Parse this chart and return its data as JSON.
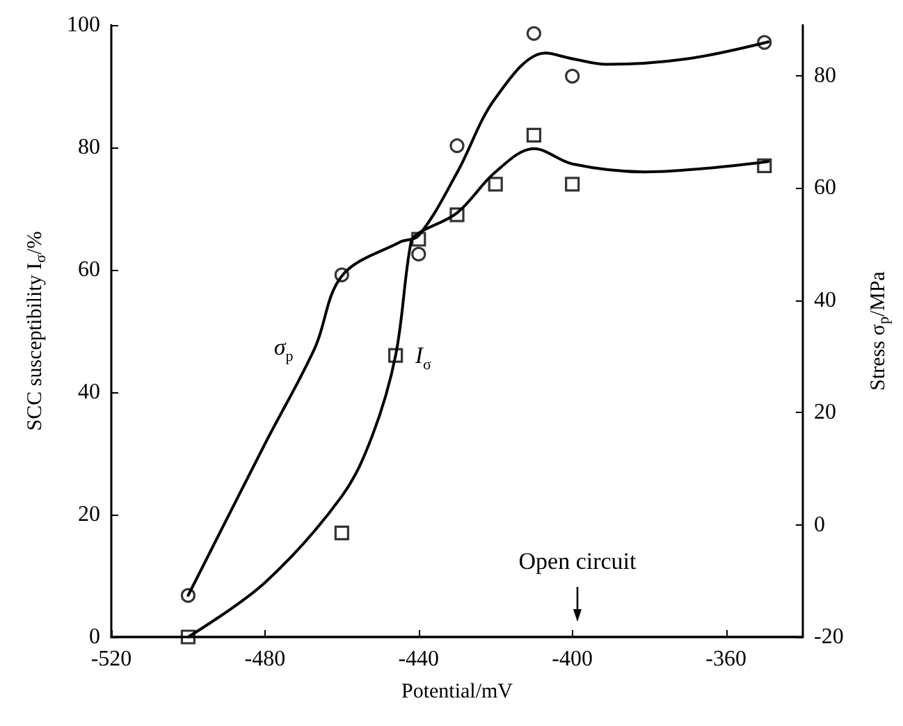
{
  "chart_data": {
    "type": "scatter",
    "xlabel": "Potential/mV",
    "ylabel": "SCC susceptibility I$_{σ}$/%",
    "y2label": "Stress σ$_{p}$/MPa",
    "xlim": [
      -520,
      -340
    ],
    "xticks": [
      -520,
      -480,
      -440,
      -400,
      -360
    ],
    "ylim": [
      0,
      100
    ],
    "yticks": [
      0,
      20,
      40,
      60,
      80,
      100
    ],
    "y2lim": [
      -20,
      89
    ],
    "y2ticks": [
      -20,
      0,
      20,
      40,
      60,
      80
    ],
    "grid": false,
    "series": [
      {
        "axis": "y2",
        "marker": "circle",
        "color": "#000000",
        "x": [
          -500,
          -460,
          -440,
          -430,
          -410,
          -400,
          -350
        ],
        "values": [
          -12.6,
          44.5,
          48.2,
          67.5,
          87.5,
          79.9,
          85.9
        ]
      },
      {
        "axis": "y",
        "marker": "square",
        "color": "#000000",
        "x": [
          -500,
          -460,
          -446,
          -440,
          -430,
          -420,
          -410,
          -400,
          -350
        ],
        "values": [
          0,
          17,
          46,
          65,
          69,
          74,
          82,
          74,
          77
        ]
      },
      {
        "type": "line",
        "name": "σ$_{p}$",
        "axis": "y2",
        "marker": "none",
        "line_style": "solid",
        "color": "#000000",
        "x": [
          -500,
          -480,
          -467,
          -460,
          -445,
          -440,
          -430,
          -420,
          -407,
          -400,
          -391,
          -370,
          -349
        ],
        "values": [
          -12.6,
          14.4,
          31.5,
          44.3,
          50.3,
          51.5,
          62.7,
          76,
          84,
          83,
          82,
          83,
          86
        ]
      },
      {
        "type": "line",
        "name": "I$_{σ}$",
        "axis": "y",
        "marker": "none",
        "line_style": "solid",
        "color": "#000000",
        "x": [
          -500,
          -480,
          -460,
          -452,
          -446,
          -442,
          -440,
          -430,
          -420,
          -410,
          -400,
          -381,
          -349
        ],
        "values": [
          0,
          8.9,
          23,
          33,
          46,
          64.5,
          66,
          69.3,
          76,
          79.8,
          77.3,
          76,
          77.7
        ]
      }
    ],
    "annotations": [
      "Open circuit"
    ]
  }
}
